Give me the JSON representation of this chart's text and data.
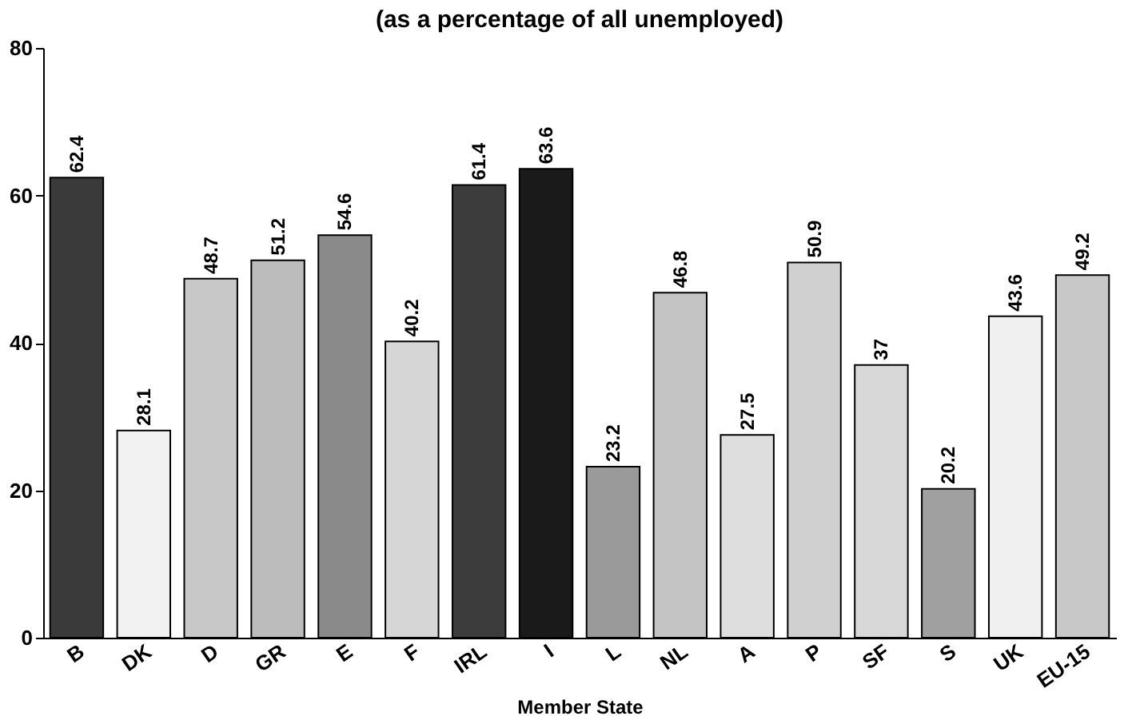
{
  "chart_data": {
    "type": "bar",
    "subtitle": "(as a percentage of all unemployed)",
    "xlabel": "Member State",
    "categories": [
      "B",
      "DK",
      "D",
      "GR",
      "E",
      "F",
      "IRL",
      "I",
      "L",
      "NL",
      "A",
      "P",
      "SF",
      "S",
      "UK",
      "EU-15"
    ],
    "values": [
      62.4,
      28.1,
      48.7,
      51.2,
      54.6,
      40.2,
      61.4,
      63.6,
      23.2,
      46.8,
      27.5,
      50.9,
      37,
      20.2,
      43.6,
      49.2
    ],
    "colors": [
      "#3a3a3a",
      "#f2f2f2",
      "#c8c8c8",
      "#bcbcbc",
      "#8a8a8a",
      "#d6d6d6",
      "#3c3c3c",
      "#1a1a1a",
      "#9a9a9a",
      "#c4c4c4",
      "#dedede",
      "#d0d0d0",
      "#d8d8d8",
      "#a0a0a0",
      "#f0f0f0",
      "#c8c8c8"
    ],
    "ylim": [
      0,
      80
    ],
    "yticks": [
      0,
      20,
      40,
      60,
      80
    ],
    "grid": false,
    "data_labels": true
  }
}
